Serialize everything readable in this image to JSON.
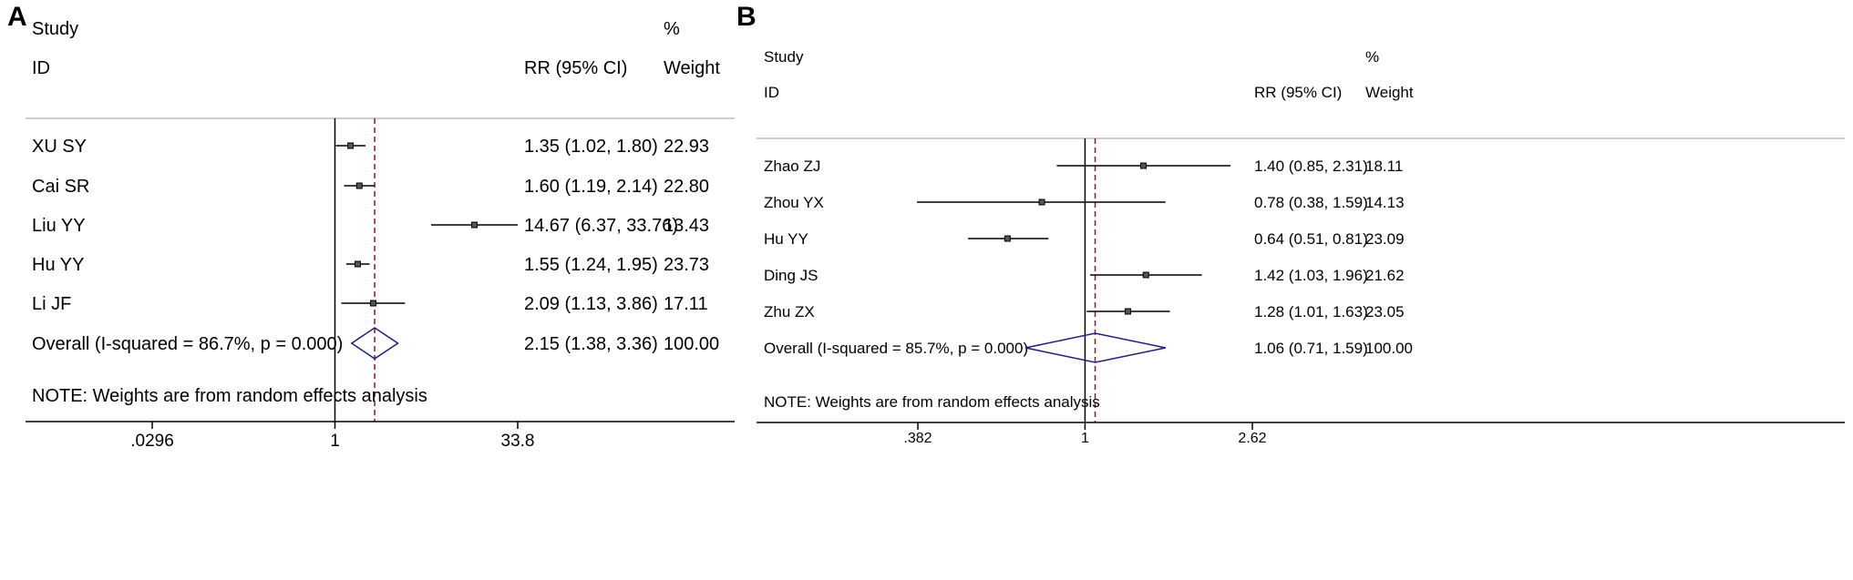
{
  "chart_data": [
    {
      "type": "forest",
      "panel_label": "A",
      "headers": {
        "study_line1": "Study",
        "study_line2": "ID",
        "effect": "RR (95% CI)",
        "weight_line1": "%",
        "weight_line2": "Weight"
      },
      "scale": "log",
      "xlim": [
        0.0296,
        33.8
      ],
      "x_ticks": [
        ".0296",
        "1",
        "33.8"
      ],
      "overall_rr": 2.15,
      "studies": [
        {
          "id": "XU SY",
          "rr": 1.35,
          "lo": 1.02,
          "hi": 1.8,
          "ci_text": "1.35 (1.02, 1.80)",
          "weight": "22.93"
        },
        {
          "id": "Cai SR",
          "rr": 1.6,
          "lo": 1.19,
          "hi": 2.14,
          "ci_text": "1.60 (1.19, 2.14)",
          "weight": "22.80"
        },
        {
          "id": "Liu YY",
          "rr": 14.67,
          "lo": 6.37,
          "hi": 33.76,
          "ci_text": "14.67 (6.37, 33.76)",
          "weight": "13.43"
        },
        {
          "id": "Hu YY",
          "rr": 1.55,
          "lo": 1.24,
          "hi": 1.95,
          "ci_text": "1.55 (1.24, 1.95)",
          "weight": "23.73"
        },
        {
          "id": "Li JF",
          "rr": 2.09,
          "lo": 1.13,
          "hi": 3.86,
          "ci_text": "2.09 (1.13, 3.86)",
          "weight": "17.11"
        }
      ],
      "overall": {
        "label": "Overall  (I-squared = 86.7%, p = 0.000)",
        "rr": 2.15,
        "lo": 1.38,
        "hi": 3.36,
        "ci_text": "2.15 (1.38, 3.36)",
        "weight": "100.00"
      },
      "note": "NOTE: Weights are from random effects analysis"
    },
    {
      "type": "forest",
      "panel_label": "B",
      "headers": {
        "study_line1": "Study",
        "study_line2": "ID",
        "effect": "RR (95% CI)",
        "weight_line1": "%",
        "weight_line2": "Weight"
      },
      "scale": "log",
      "xlim": [
        0.382,
        2.62
      ],
      "x_ticks": [
        ".382",
        "1",
        "2.62"
      ],
      "overall_rr": 1.06,
      "studies": [
        {
          "id": "Zhao ZJ",
          "rr": 1.4,
          "lo": 0.85,
          "hi": 2.31,
          "ci_text": "1.40 (0.85, 2.31)",
          "weight": "18.11"
        },
        {
          "id": "Zhou YX",
          "rr": 0.78,
          "lo": 0.38,
          "hi": 1.59,
          "ci_text": "0.78 (0.38, 1.59)",
          "weight": "14.13"
        },
        {
          "id": "Hu YY",
          "rr": 0.64,
          "lo": 0.51,
          "hi": 0.81,
          "ci_text": "0.64 (0.51, 0.81)",
          "weight": "23.09"
        },
        {
          "id": "Ding JS",
          "rr": 1.42,
          "lo": 1.03,
          "hi": 1.96,
          "ci_text": "1.42 (1.03, 1.96)",
          "weight": "21.62"
        },
        {
          "id": "Zhu ZX",
          "rr": 1.28,
          "lo": 1.01,
          "hi": 1.63,
          "ci_text": "1.28 (1.01, 1.63)",
          "weight": "23.05"
        }
      ],
      "overall": {
        "label": "Overall  (I-squared = 85.7%, p = 0.000)",
        "rr": 1.06,
        "lo": 0.71,
        "hi": 1.59,
        "ci_text": "1.06 (0.71, 1.59)",
        "weight": "100.00"
      },
      "note": "NOTE: Weights are from random effects analysis"
    }
  ],
  "colors": {
    "axis": "#000000",
    "ci_line": "#000000",
    "overall_line": "#8b1a1a",
    "diamond": "#1f1f7a",
    "separator": "#bdbdbd"
  }
}
